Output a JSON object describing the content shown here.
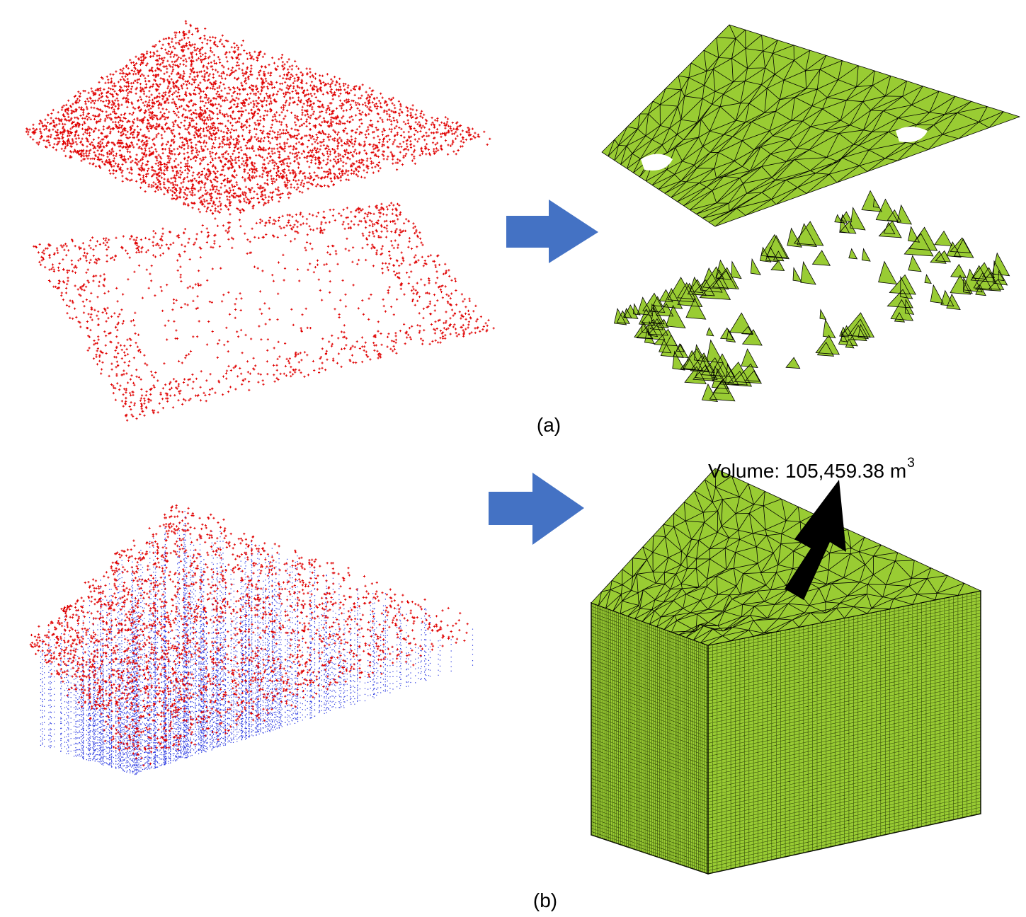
{
  "panels": [
    {
      "label": "(a)"
    },
    {
      "label": "(b)"
    }
  ],
  "volume": {
    "text": "Volume: 105,459.38 m",
    "superscript": "3"
  }
}
